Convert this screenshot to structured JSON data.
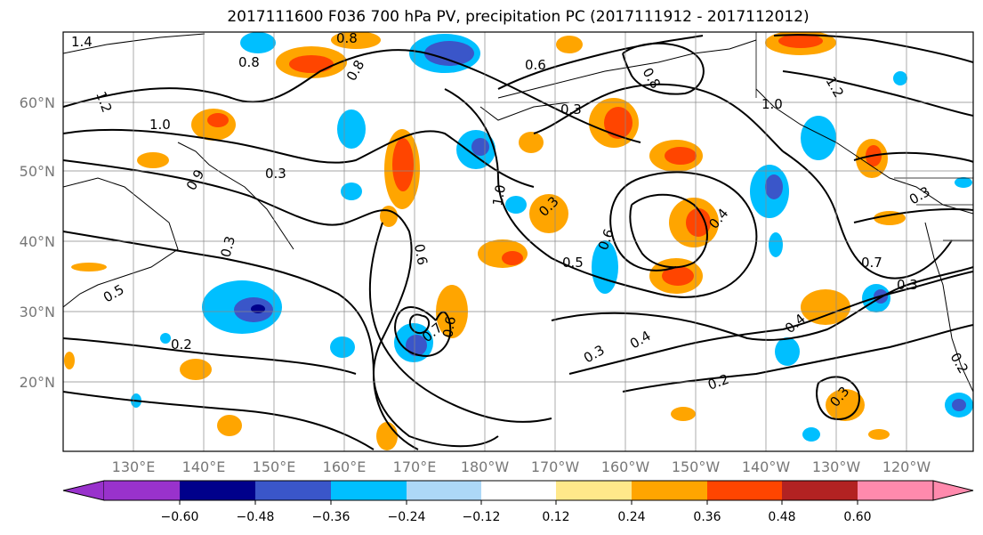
{
  "title": "2017111600 F036 700 hPa PV, precipitation PC (2017111912 - 2017112012)",
  "lat_labels": [
    "60°N",
    "50°N",
    "40°N",
    "30°N",
    "20°N"
  ],
  "lon_labels": [
    "130°E",
    "140°E",
    "150°E",
    "160°E",
    "170°E",
    "180°W",
    "170°W",
    "160°W",
    "150°W",
    "140°W",
    "130°W",
    "120°W"
  ],
  "contour_labels": [
    "1.4",
    "1.2",
    "0.8",
    "0.8",
    "1.0",
    "0.9",
    "0.3",
    "0.8",
    "0.6",
    "0.8",
    "1.2",
    "1.0",
    "1.0",
    "0.3",
    "0.6",
    "0.3",
    "0.6",
    "0.4",
    "0.5",
    "0.3",
    "0.5",
    "0.7",
    "0.6",
    "0.2",
    "0.4",
    "0.3",
    "0.2",
    "0.4",
    "0.3",
    "0.7",
    "0.3",
    "0.3",
    "0.2"
  ],
  "colorbar": {
    "ticks": [
      "−0.60",
      "−0.48",
      "−0.36",
      "−0.24",
      "−0.12",
      "0.12",
      "0.24",
      "0.36",
      "0.48",
      "0.60"
    ],
    "colors": [
      "#9932cc",
      "#00008b",
      "#3a56c9",
      "#00bfff",
      "#add8f7",
      "#ffffff",
      "#ffe88a",
      "#ffa500",
      "#ff4500",
      "#b22222",
      "#ff8aad"
    ]
  }
}
